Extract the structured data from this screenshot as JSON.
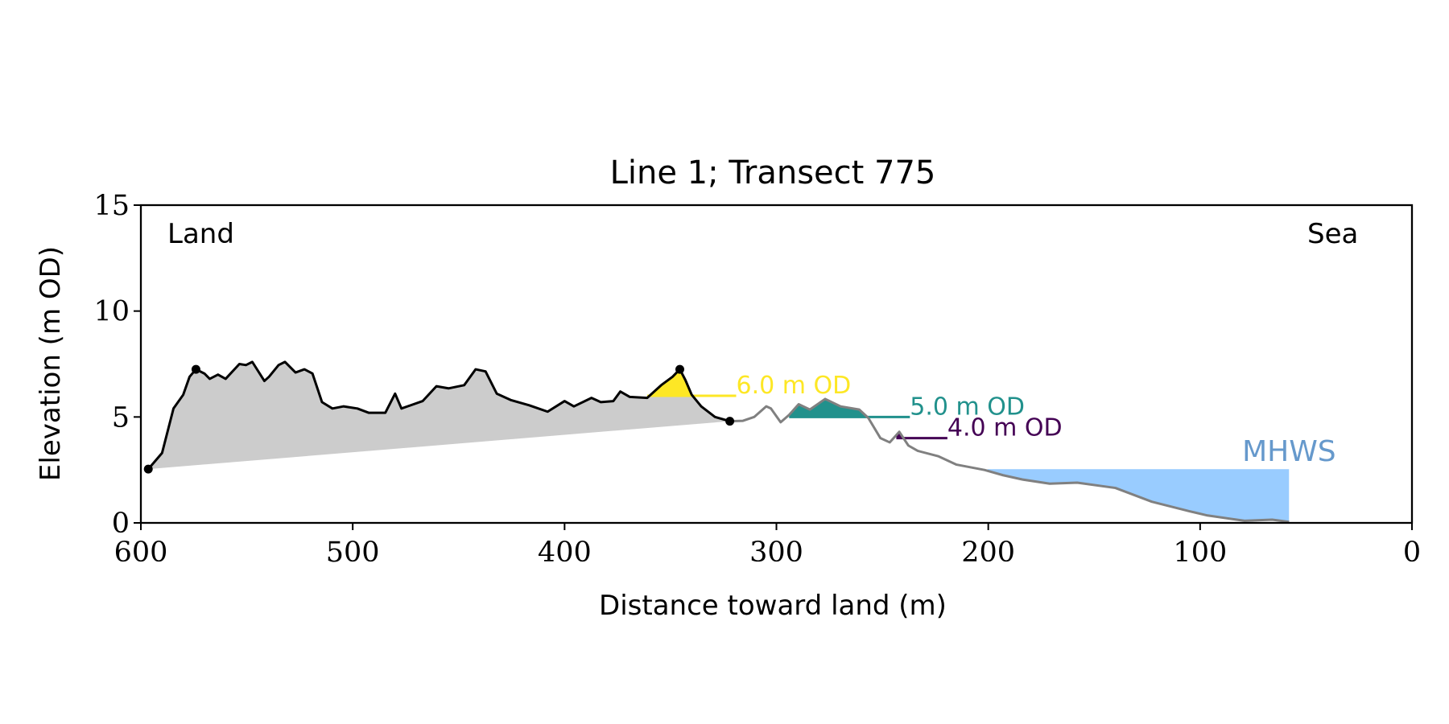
{
  "chart_data": {
    "type": "line",
    "title": "Line 1; Transect 775",
    "xlabel": "Distance toward land (m)",
    "ylabel": "Elevation (m OD)",
    "xlim": [
      600,
      0
    ],
    "ylim": [
      0,
      15
    ],
    "xticks": [
      600,
      500,
      400,
      300,
      200,
      100,
      0
    ],
    "yticks": [
      0,
      5,
      10,
      15
    ],
    "annotations": [
      {
        "text": "Land",
        "corner": "top-left"
      },
      {
        "text": "Sea",
        "corner": "top-right"
      }
    ],
    "x": [
      596.5,
      590,
      584.6,
      580,
      577,
      574,
      570,
      567.5,
      563.6,
      560,
      553.5,
      550.4,
      547.4,
      541.7,
      539.5,
      535,
      532,
      527,
      522.8,
      519,
      514.5,
      509.6,
      504.4,
      497.8,
      492.5,
      484.6,
      480,
      477,
      467,
      460.5,
      454.8,
      447.4,
      442,
      437.3,
      432,
      425.4,
      416.7,
      408,
      400,
      395.6,
      387.3,
      382.9,
      377,
      373.7,
      369.3,
      361,
      354.4,
      349,
      345.6,
      343,
      340,
      335.5,
      329,
      322,
      322,
      315.8,
      310.5,
      304.8,
      302.6,
      298,
      294,
      289.5,
      284.2,
      277,
      269.7,
      260.9,
      256.6,
      250.9,
      246.5,
      242,
      237.7,
      233.3,
      223.7,
      215,
      201.8,
      193,
      184,
      171,
      158,
      140,
      122.8,
      105,
      96.5,
      79,
      66,
      58
    ],
    "series": [
      {
        "color": "#000000",
        "values": [
          2.54,
          3.3,
          5.4,
          6.05,
          6.9,
          7.25,
          7.05,
          6.8,
          7.0,
          6.8,
          7.5,
          7.45,
          7.6,
          6.7,
          6.9,
          7.45,
          7.6,
          7.1,
          7.25,
          7.05,
          5.7,
          5.4,
          5.5,
          5.4,
          5.2,
          5.2,
          6.1,
          5.4,
          5.75,
          6.45,
          6.35,
          6.5,
          7.25,
          7.15,
          6.1,
          5.8,
          5.55,
          5.25,
          5.75,
          5.5,
          5.9,
          5.7,
          5.75,
          6.2,
          5.95,
          5.9,
          6.5,
          6.9,
          7.25,
          6.75,
          6.05,
          5.5,
          5.0,
          4.8,
          null,
          null,
          null,
          null,
          null,
          null,
          null,
          null,
          null,
          null,
          null,
          null,
          null,
          null,
          null,
          null,
          null,
          null,
          null,
          null,
          null,
          null,
          null,
          null,
          null,
          null,
          null,
          null,
          null,
          null,
          null,
          null
        ]
      },
      {
        "color": "#808080",
        "values": [
          null,
          null,
          null,
          null,
          null,
          null,
          null,
          null,
          null,
          null,
          null,
          null,
          null,
          null,
          null,
          null,
          null,
          null,
          null,
          null,
          null,
          null,
          null,
          null,
          null,
          null,
          null,
          null,
          null,
          null,
          null,
          null,
          null,
          null,
          null,
          null,
          null,
          null,
          null,
          null,
          null,
          null,
          null,
          null,
          null,
          null,
          null,
          null,
          null,
          null,
          null,
          null,
          null,
          null,
          4.8,
          4.82,
          5.0,
          5.5,
          5.4,
          4.75,
          5.1,
          5.6,
          5.35,
          5.85,
          5.5,
          5.35,
          4.95,
          4.0,
          3.8,
          4.3,
          3.65,
          3.4,
          3.15,
          2.75,
          2.5,
          2.25,
          2.05,
          1.85,
          1.9,
          1.65,
          1.0,
          0.55,
          0.35,
          0.1,
          0.15,
          0.05
        ]
      }
    ],
    "fill_color": "#cccccc",
    "markers": {
      "color": "#000000",
      "x": [
        596.5,
        574,
        345.6,
        322
      ],
      "values": [
        2.54,
        7.25,
        7.25,
        4.8
      ]
    },
    "levels": [
      {
        "label": "6.0 m OD",
        "value": 6.0,
        "color": "#fde725",
        "side": "above",
        "xrange": [
          361,
          319
        ]
      },
      {
        "label": "5.0 m OD",
        "value": 5.0,
        "color": "#21918c",
        "side": "above",
        "xrange": [
          294,
          237
        ]
      },
      {
        "label": "4.0 m OD",
        "value": 4.0,
        "color": "#440154",
        "side": "above",
        "xrange": [
          243.4,
          219.3
        ]
      },
      {
        "label": "MHWS",
        "value": 2.54,
        "color": "#99ccff",
        "label_color": "#6699cc",
        "side": "below",
        "xrange": [
          200.4,
          58
        ]
      }
    ]
  }
}
